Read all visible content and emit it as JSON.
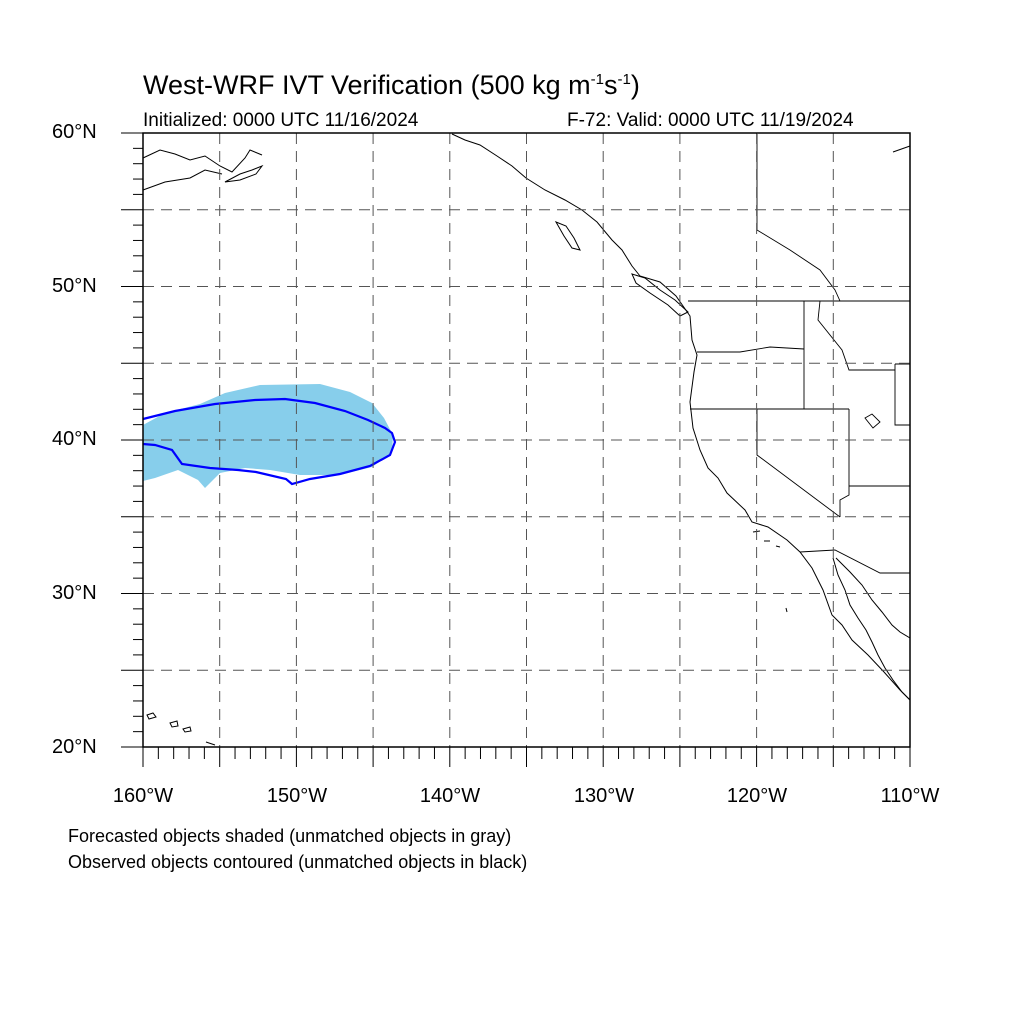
{
  "map": {
    "title_main": "West-WRF IVT Verification (500 kg m",
    "title_exp1": "-1",
    "title_mid": "s",
    "title_exp2": "-1",
    "title_end": ")",
    "initialized": "Initialized: 0000 UTC 11/16/2024",
    "valid": "F-72: Valid: 0000 UTC 11/19/2024",
    "lat_labels": [
      "60°N",
      "50°N",
      "40°N",
      "30°N",
      "20°N"
    ],
    "lon_labels": [
      "160°W",
      "150°W",
      "140°W",
      "130°W",
      "120°W",
      "110°W"
    ],
    "legend_forecast": "Forecasted objects shaded (unmatched objects in gray)",
    "legend_observed": "Observed objects contoured (unmatched objects in black)",
    "extent": {
      "lon_min": -160,
      "lon_max": -110,
      "lat_min": 20,
      "lat_max": 60
    },
    "colors": {
      "forecast_fill": "#87ceeb",
      "observed_contour": "#0000ff",
      "coastline": "#000000",
      "grid": "#555555"
    }
  }
}
